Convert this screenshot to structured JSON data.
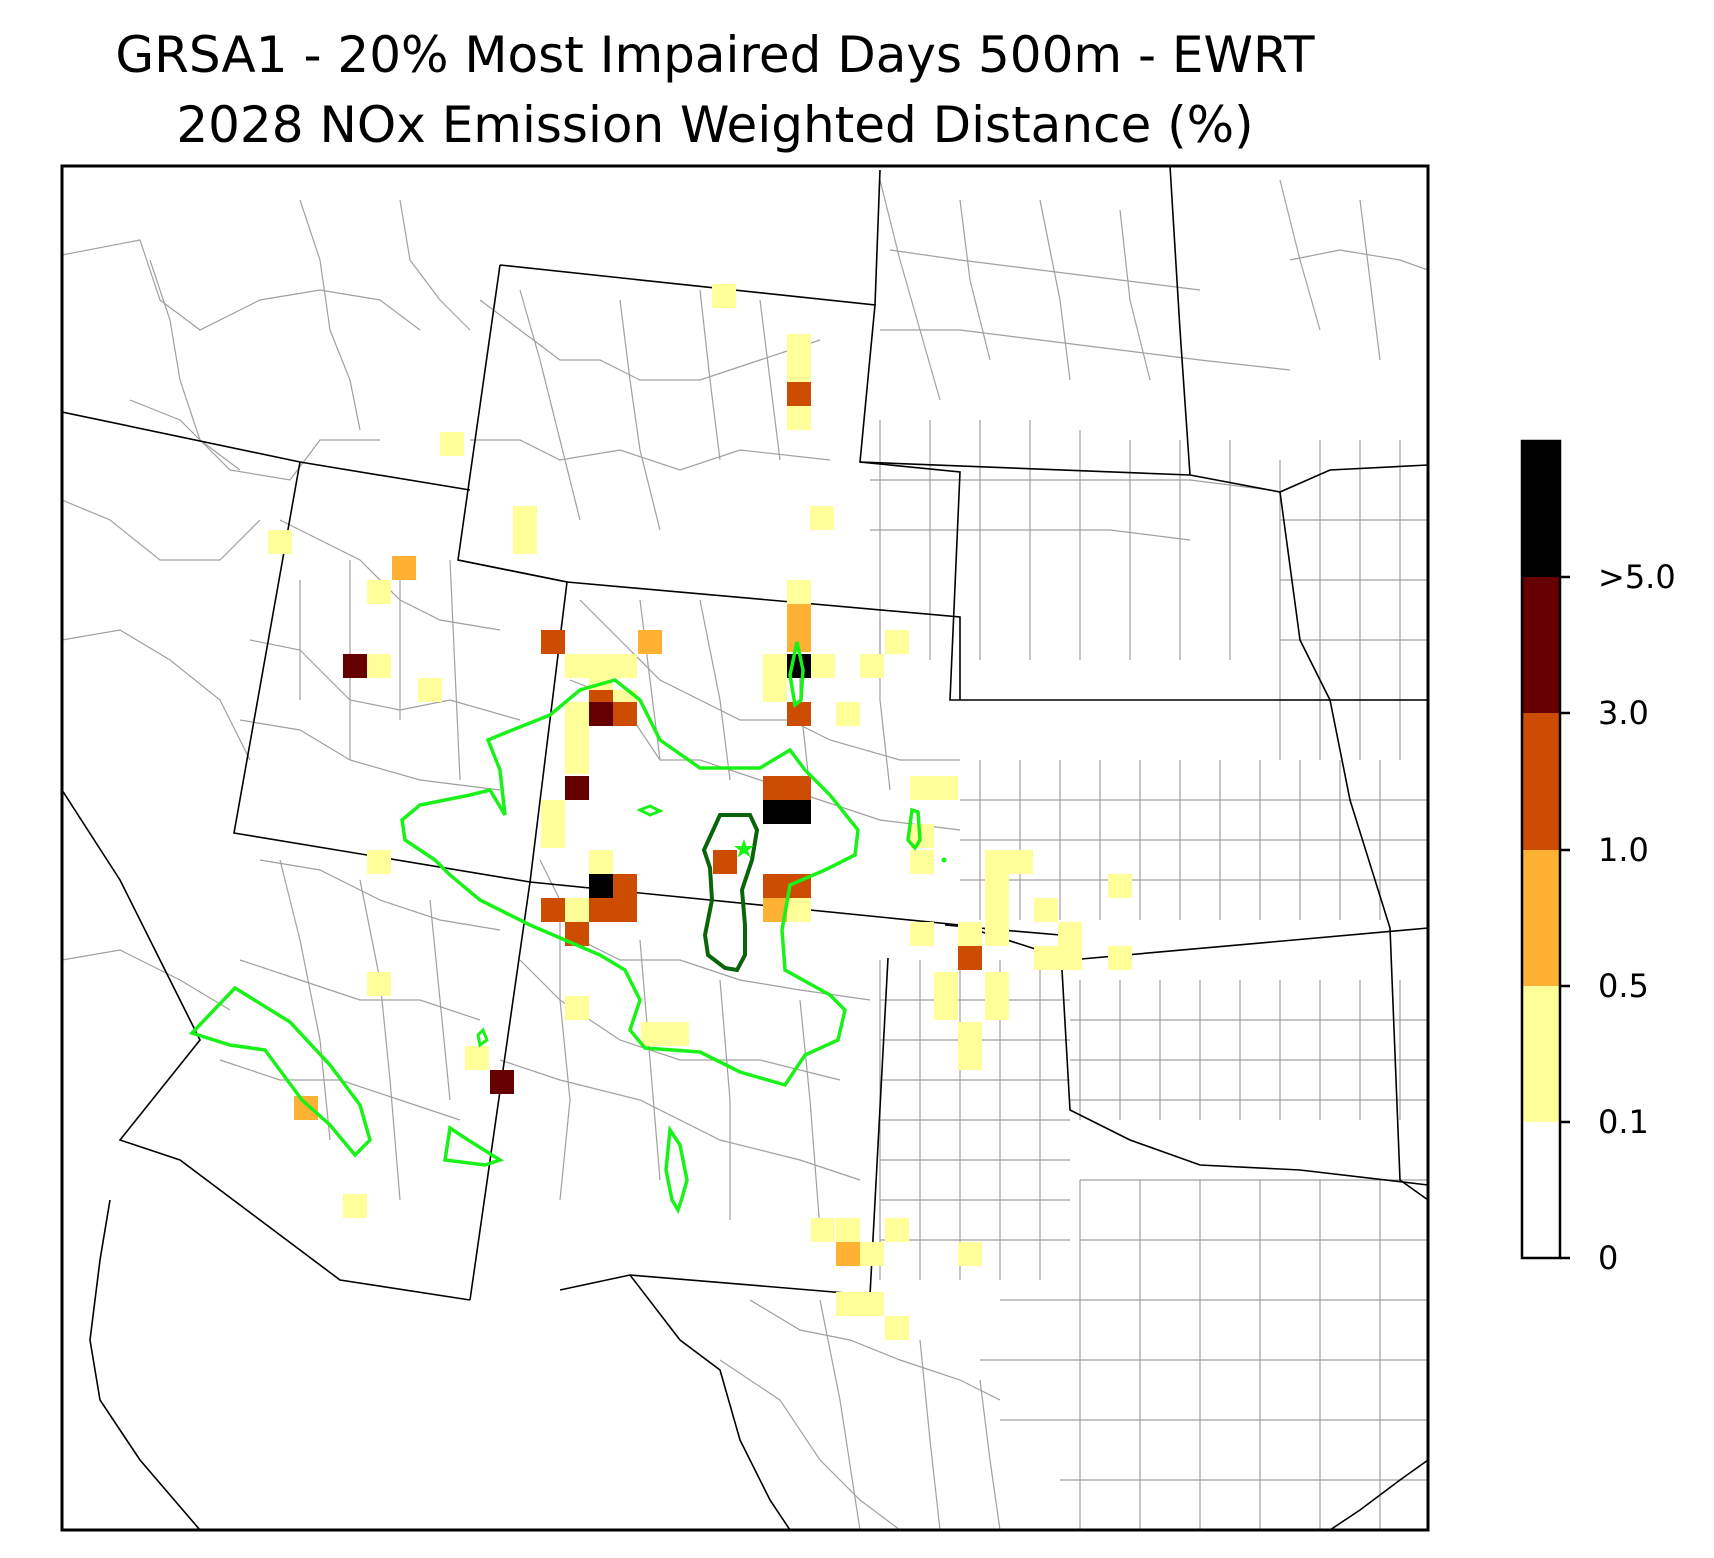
{
  "title": {
    "line1": "GRSA1 - 20% Most Impaired Days 500m - EWRT",
    "line2": "2028 NOx Emission Weighted Distance (%)"
  },
  "colors": {
    "bin_0_01": "#ffffff",
    "bin_01_05": "#ffff99",
    "bin_05_1": "#ffb133",
    "bin_1_3": "#cc4c02",
    "bin_3_5": "#660000",
    "bin_gt5": "#000000",
    "contour_outer": "#19f219",
    "contour_inner": "#0a640a",
    "county_lines": "#a0a0a0",
    "state_lines": "#000000"
  },
  "colorbar": {
    "ticks": [
      "0",
      "0.1",
      "0.5",
      "1.0",
      "3.0",
      ">5.0"
    ]
  },
  "map": {
    "projection": "lambert-conformal",
    "region": "Southwest / Central Plains (CO, UT, NM, AZ, WY, KS, OK, TX)",
    "receptor_marker": "star-icon"
  }
}
